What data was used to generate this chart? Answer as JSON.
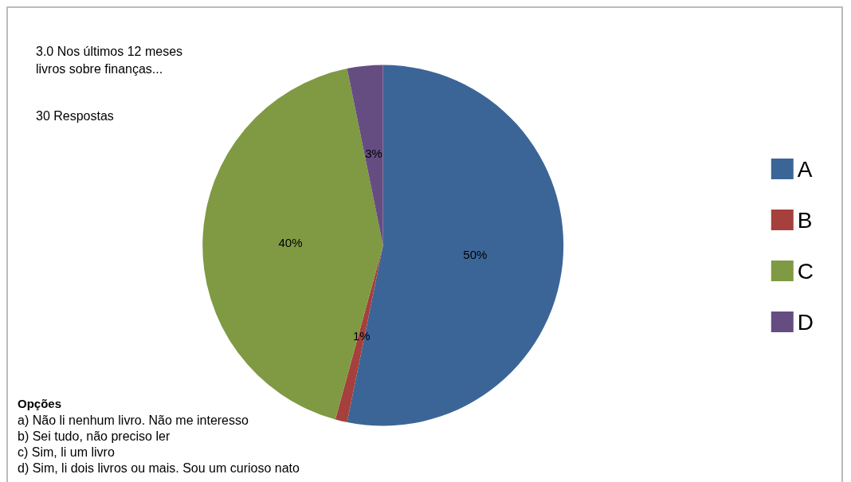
{
  "chart_data": {
    "type": "pie",
    "title": "3.0 Nos últimos 12 meses\nlivros sobre finanças...",
    "subtitle": "30 Respostas",
    "categories": [
      "A",
      "B",
      "C",
      "D"
    ],
    "values": [
      50,
      1,
      40,
      3
    ],
    "colors": [
      "#3c6597",
      "#a5403d",
      "#7f9a42",
      "#654d82"
    ],
    "value_labels": [
      "50%",
      "1%",
      "40%",
      "3%"
    ],
    "legend": "right",
    "annotations": [
      "Opções",
      "a) Não li nenhum livro. Não me interesso",
      "b) Sei tudo, não preciso ler",
      "c) Sim, li um livro",
      "d) Sim, li dois livros ou mais. Sou um curioso nato"
    ]
  }
}
